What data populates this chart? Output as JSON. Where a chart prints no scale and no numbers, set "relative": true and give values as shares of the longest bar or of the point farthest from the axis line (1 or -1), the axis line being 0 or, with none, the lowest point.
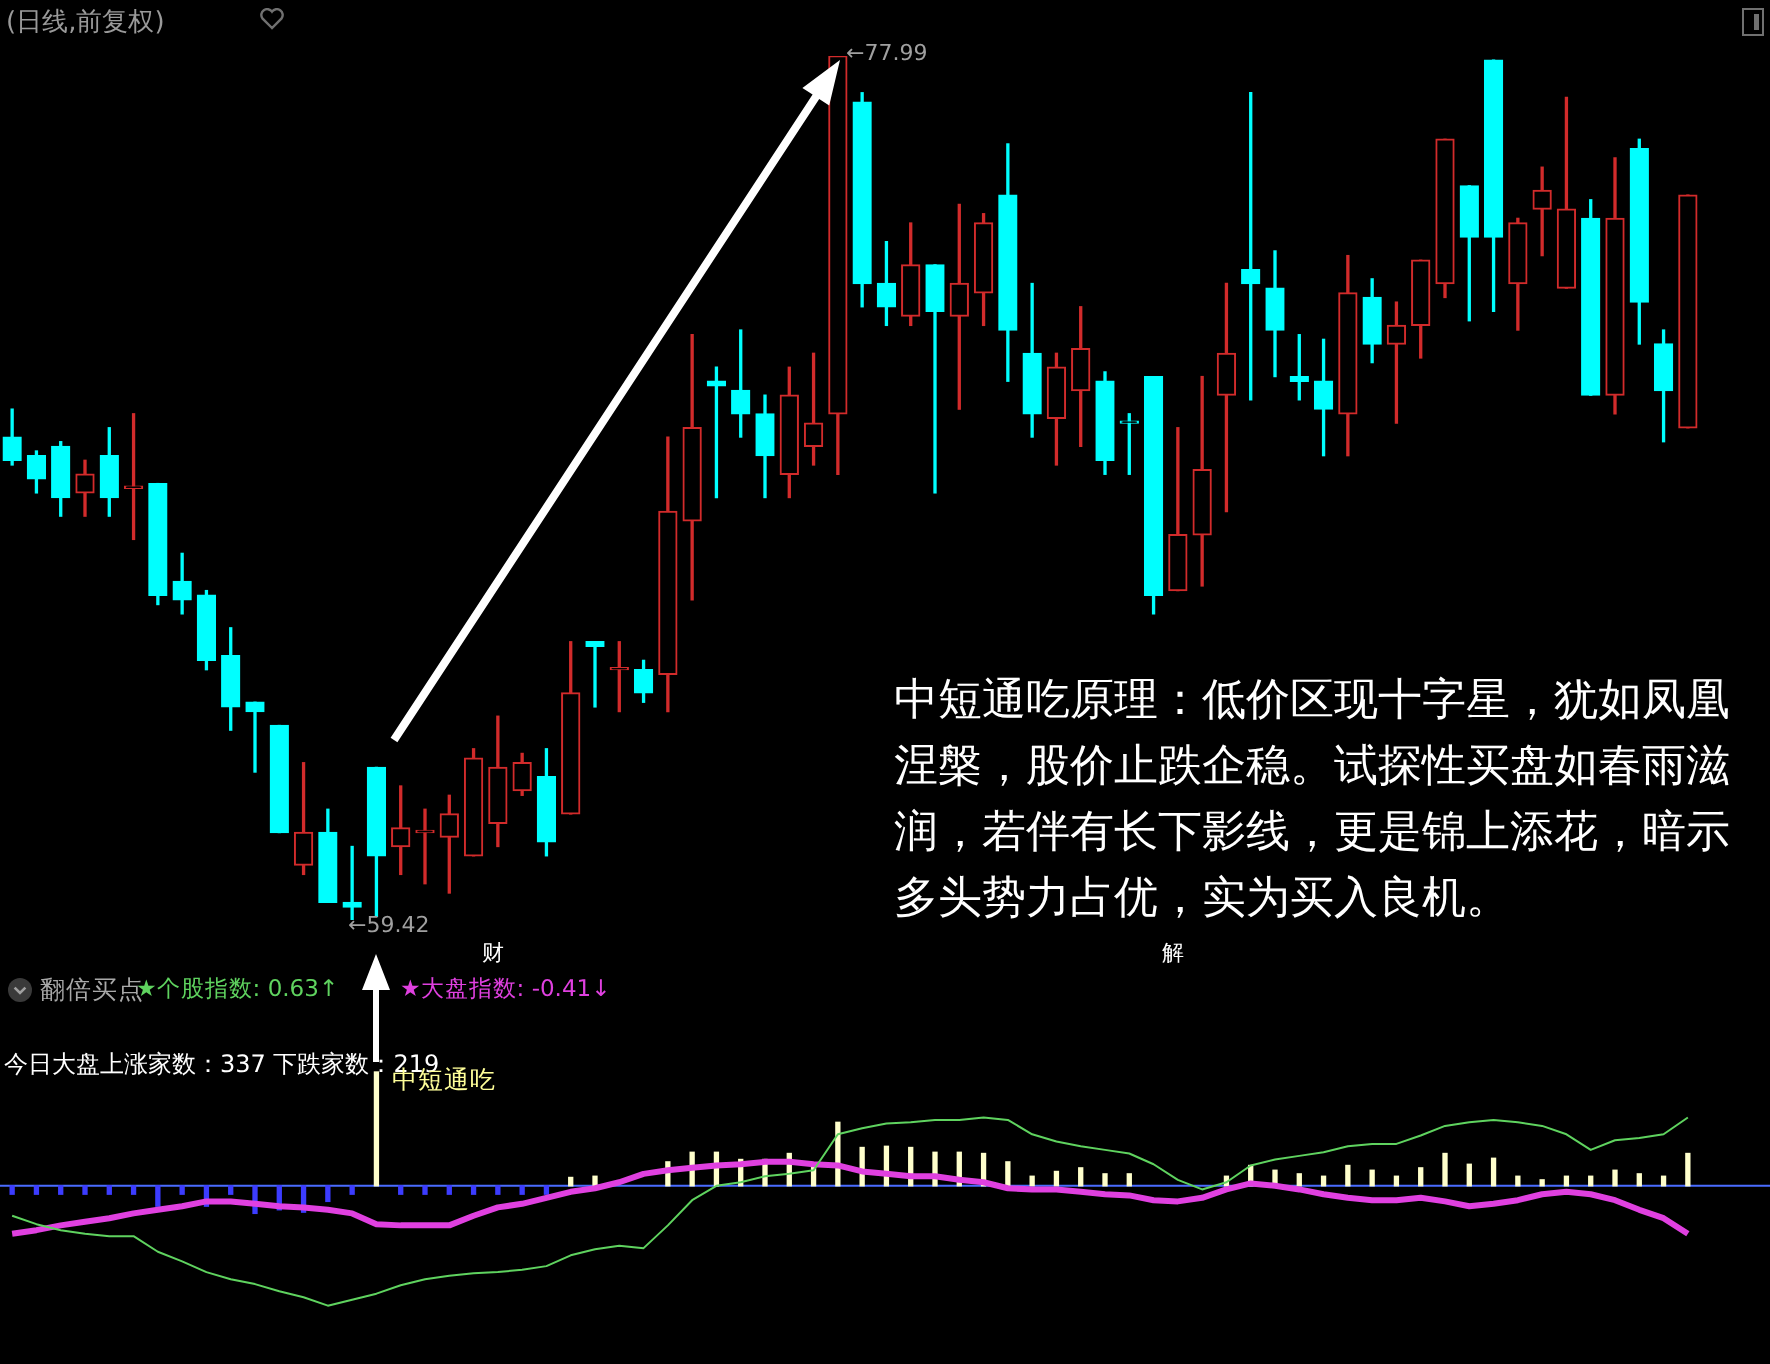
{
  "chart_data": [
    {
      "type": "candlestick",
      "title": "(日线,前复权)",
      "categories": [
        null,
        null,
        null,
        null,
        null,
        null,
        null,
        null,
        null,
        null,
        null,
        null,
        null,
        null,
        null,
        null,
        null,
        null,
        null,
        null,
        null,
        null,
        null,
        null,
        null,
        null,
        null,
        null,
        null,
        null,
        null,
        null,
        null,
        null,
        null,
        null,
        null,
        null,
        null,
        null,
        null,
        null,
        null,
        null,
        null,
        null,
        null,
        null,
        null,
        null,
        null,
        null,
        null,
        null,
        null,
        null,
        null,
        null,
        null,
        null,
        null,
        null,
        null,
        null,
        null,
        null,
        null,
        null,
        null,
        null
      ],
      "ohlc": [
        [
          69.8,
          70.4,
          69.2,
          69.3
        ],
        [
          69.4,
          69.5,
          68.6,
          68.9
        ],
        [
          69.6,
          69.7,
          68.1,
          68.5
        ],
        [
          68.6,
          69.3,
          68.1,
          69.0
        ],
        [
          69.4,
          70.0,
          68.1,
          68.5
        ],
        [
          68.7,
          70.3,
          67.6,
          68.7
        ],
        [
          68.8,
          68.8,
          66.2,
          66.4
        ],
        [
          66.7,
          67.3,
          66.0,
          66.3
        ],
        [
          66.4,
          66.5,
          64.8,
          65.0
        ],
        [
          65.1,
          65.7,
          63.5,
          64.0
        ],
        [
          64.1,
          64.1,
          62.6,
          63.9
        ],
        [
          63.6,
          63.6,
          61.3,
          61.3
        ],
        [
          60.6,
          62.8,
          60.4,
          61.3
        ],
        [
          61.3,
          61.8,
          59.8,
          59.8
        ],
        [
          59.8,
          61.0,
          59.42,
          59.7
        ],
        [
          62.7,
          62.7,
          59.5,
          60.8
        ],
        [
          61.0,
          62.3,
          60.4,
          61.4
        ],
        [
          61.3,
          61.8,
          60.2,
          61.3
        ],
        [
          61.2,
          62.1,
          60.0,
          61.7
        ],
        [
          60.8,
          63.1,
          60.8,
          62.9
        ],
        [
          61.5,
          63.8,
          61.0,
          62.7
        ],
        [
          62.2,
          63.0,
          62.1,
          62.8
        ],
        [
          62.5,
          63.1,
          60.8,
          61.1
        ],
        [
          61.7,
          65.4,
          61.7,
          64.3
        ],
        [
          65.4,
          65.4,
          64.0,
          65.3
        ],
        [
          64.8,
          65.4,
          63.9,
          64.8
        ],
        [
          64.8,
          65.0,
          64.1,
          64.3
        ],
        [
          64.7,
          69.8,
          63.9,
          68.2
        ],
        [
          68.0,
          72.0,
          66.3,
          70.0
        ],
        [
          71.0,
          71.3,
          68.5,
          70.9
        ],
        [
          70.8,
          72.1,
          69.8,
          70.3
        ],
        [
          70.3,
          70.7,
          68.5,
          69.4
        ],
        [
          69.0,
          71.3,
          68.5,
          70.7
        ],
        [
          69.6,
          71.6,
          69.2,
          70.1
        ],
        [
          70.3,
          77.99,
          69.0,
          77.99
        ],
        [
          77.0,
          77.2,
          72.6,
          73.1
        ],
        [
          73.1,
          74.0,
          72.2,
          72.6
        ],
        [
          72.4,
          74.4,
          72.2,
          73.5
        ],
        [
          73.5,
          73.5,
          68.6,
          72.5
        ],
        [
          72.4,
          74.8,
          70.4,
          73.1
        ],
        [
          72.9,
          74.6,
          72.2,
          74.4
        ],
        [
          75.0,
          76.1,
          71.0,
          72.1
        ],
        [
          71.6,
          73.1,
          69.8,
          70.3
        ],
        [
          70.2,
          71.6,
          69.2,
          71.3
        ],
        [
          70.8,
          72.6,
          69.6,
          71.7
        ],
        [
          71.0,
          71.2,
          69.0,
          69.3
        ],
        [
          70.1,
          70.3,
          69.0,
          70.1
        ],
        [
          71.1,
          71.1,
          66.0,
          66.4
        ],
        [
          66.5,
          70.0,
          66.5,
          67.7
        ],
        [
          67.7,
          71.1,
          66.6,
          69.1
        ],
        [
          70.7,
          73.1,
          68.2,
          71.6
        ],
        [
          73.4,
          77.2,
          70.6,
          73.1
        ],
        [
          73.0,
          73.8,
          71.1,
          72.1
        ],
        [
          71.1,
          72.0,
          70.6,
          71.0
        ],
        [
          71.0,
          71.9,
          69.4,
          70.4
        ],
        [
          70.3,
          73.7,
          69.4,
          72.9
        ],
        [
          72.8,
          73.2,
          71.4,
          71.8
        ],
        [
          71.8,
          72.7,
          70.1,
          72.2
        ],
        [
          72.2,
          73.6,
          71.5,
          73.6
        ],
        [
          73.1,
          76.2,
          72.8,
          76.2
        ],
        [
          75.2,
          75.2,
          72.3,
          74.1
        ],
        [
          77.9,
          77.9,
          72.5,
          74.1
        ],
        [
          73.1,
          74.5,
          72.1,
          74.4
        ],
        [
          74.7,
          75.6,
          73.7,
          75.1
        ],
        [
          73.0,
          77.1,
          73.0,
          74.7
        ],
        [
          74.5,
          74.9,
          70.7,
          70.7
        ],
        [
          70.7,
          75.8,
          70.3,
          74.5
        ],
        [
          76.0,
          76.2,
          71.8,
          72.7
        ],
        [
          71.8,
          72.1,
          69.7,
          70.8
        ],
        [
          70.0,
          75.0,
          70.0,
          75.0
        ]
      ],
      "colors": [
        "#00ffff",
        "#00ffff",
        "#00ffff",
        "#d22b2b",
        "#00ffff",
        "#d22b2b",
        "#00ffff",
        "#00ffff",
        "#00ffff",
        "#00ffff",
        "#00ffff",
        "#00ffff",
        "#d22b2b",
        "#00ffff",
        "#00ffff",
        "#00ffff",
        "#d22b2b",
        "#d22b2b",
        "#d22b2b",
        "#d22b2b",
        "#d22b2b",
        "#d22b2b",
        "#00ffff",
        "#d22b2b",
        "#00ffff",
        "#d22b2b",
        "#00ffff",
        "#d22b2b",
        "#d22b2b",
        "#00ffff",
        "#00ffff",
        "#00ffff",
        "#d22b2b",
        "#d22b2b",
        "#d22b2b",
        "#00ffff",
        "#00ffff",
        "#d22b2b",
        "#00ffff",
        "#d22b2b",
        "#d22b2b",
        "#00ffff",
        "#00ffff",
        "#d22b2b",
        "#d22b2b",
        "#00ffff",
        "#00ffff",
        "#00ffff",
        "#d22b2b",
        "#d22b2b",
        "#d22b2b",
        "#00ffff",
        "#00ffff",
        "#00ffff",
        "#00ffff",
        "#d22b2b",
        "#00ffff",
        "#d22b2b",
        "#d22b2b",
        "#d22b2b",
        "#00ffff",
        "#00ffff",
        "#d22b2b",
        "#d22b2b",
        "#d22b2b",
        "#00ffff",
        "#d22b2b",
        "#00ffff",
        "#00ffff",
        "#d22b2b"
      ],
      "annotations": [
        "←77.99",
        "←59.42",
        "中短通吃原理：低价区现十字星，犹如凤凰涅槃，股价止跌企稳。试探性买盘如春雨滋润，若伴有长下影线，更是锦上添花，暗示多头势力占优，实为买入良机。",
        "财",
        "解"
      ]
    },
    {
      "type": "bar",
      "relative": true,
      "ref_lines": [
        {
          "axis": "y",
          "value": 0,
          "color": "#4a6cff"
        }
      ],
      "categories": [
        null,
        null,
        null,
        null,
        null,
        null,
        null,
        null,
        null,
        null,
        null,
        null,
        null,
        null,
        null,
        null,
        null,
        null,
        null,
        null,
        null,
        null,
        null,
        null,
        null,
        null,
        null,
        null,
        null,
        null,
        null,
        null,
        null,
        null,
        null,
        null,
        null,
        null,
        null,
        null,
        null,
        null,
        null,
        null,
        null,
        null,
        null,
        null,
        null,
        null,
        null,
        null,
        null,
        null,
        null,
        null,
        null,
        null,
        null,
        null,
        null,
        null,
        null,
        null,
        null,
        null,
        null,
        null,
        null,
        null
      ],
      "series": [
        {
          "type": "bar",
          "color": "#ffffcc",
          "values": [
            null,
            null,
            null,
            null,
            null,
            null,
            null,
            null,
            null,
            null,
            null,
            null,
            null,
            null,
            null,
            0.95,
            null,
            null,
            null,
            null,
            null,
            null,
            null,
            0.07,
            0.08,
            null,
            null,
            0.2,
            0.28,
            0.28,
            0.22,
            0.22,
            0.27,
            0.18,
            0.53,
            0.32,
            0.33,
            0.32,
            0.28,
            0.28,
            0.27,
            0.2,
            0.08,
            0.12,
            0.15,
            0.1,
            0.1,
            null,
            null,
            null,
            0.08,
            0.17,
            0.13,
            0.1,
            0.08,
            0.17,
            0.13,
            0.08,
            0.15,
            0.27,
            0.18,
            0.23,
            0.08,
            0.05,
            0.08,
            0.08,
            0.13,
            0.1,
            0.08,
            0.27
          ]
        },
        {
          "type": "bar",
          "color": "#3c3cff",
          "values": [
            -0.07,
            -0.07,
            -0.07,
            -0.07,
            -0.07,
            -0.07,
            -0.17,
            -0.07,
            -0.17,
            -0.07,
            -0.23,
            -0.2,
            -0.22,
            -0.13,
            -0.07,
            null,
            -0.07,
            -0.07,
            -0.07,
            -0.07,
            -0.07,
            -0.07,
            -0.07,
            null,
            null,
            null,
            null,
            null,
            null,
            null,
            null,
            null,
            null,
            null,
            null,
            null,
            null,
            null,
            null,
            null,
            null,
            null,
            null,
            null,
            null,
            null,
            null,
            null,
            null,
            null,
            null,
            null,
            null,
            null,
            null,
            null,
            null,
            null,
            null,
            null,
            null,
            null,
            null,
            null,
            null,
            null,
            null,
            null,
            null,
            null
          ]
        },
        {
          "type": "line",
          "color": "#5fd35f",
          "values": [
            -0.25,
            -0.32,
            -0.37,
            -0.4,
            -0.42,
            -0.42,
            -0.55,
            -0.63,
            -0.72,
            -0.78,
            -0.82,
            -0.88,
            -0.93,
            -1,
            -0.95,
            -0.9,
            -0.83,
            -0.78,
            -0.75,
            -0.73,
            -0.72,
            -0.7,
            -0.67,
            -0.58,
            -0.53,
            -0.5,
            -0.52,
            -0.33,
            -0.12,
            0,
            0.03,
            0.08,
            0.1,
            0.13,
            0.43,
            0.48,
            0.52,
            0.53,
            0.55,
            0.55,
            0.57,
            0.55,
            0.43,
            0.37,
            0.33,
            0.3,
            0.27,
            0.18,
            0.05,
            -0.03,
            0.03,
            0.17,
            0.22,
            0.25,
            0.28,
            0.33,
            0.35,
            0.35,
            0.42,
            0.5,
            0.53,
            0.55,
            0.53,
            0.5,
            0.43,
            0.3,
            0.38,
            0.4,
            0.43,
            0.57
          ]
        },
        {
          "type": "line",
          "color": "#e040e0",
          "values": [
            -0.4,
            -0.37,
            -0.33,
            -0.3,
            -0.27,
            -0.23,
            -0.2,
            -0.17,
            -0.13,
            -0.13,
            -0.15,
            -0.17,
            -0.18,
            -0.2,
            -0.23,
            -0.32,
            -0.33,
            -0.33,
            -0.33,
            -0.25,
            -0.18,
            -0.15,
            -0.1,
            -0.05,
            -0.02,
            0.03,
            0.1,
            0.13,
            0.15,
            0.17,
            0.18,
            0.2,
            0.2,
            0.18,
            0.17,
            0.12,
            0.1,
            0.08,
            0.08,
            0.05,
            0.03,
            -0.02,
            -0.03,
            -0.03,
            -0.05,
            -0.07,
            -0.08,
            -0.12,
            -0.13,
            -0.1,
            -0.03,
            0.02,
            0,
            -0.03,
            -0.07,
            -0.1,
            -0.12,
            -0.12,
            -0.1,
            -0.13,
            -0.17,
            -0.15,
            -0.12,
            -0.07,
            -0.05,
            -0.07,
            -0.12,
            -0.2,
            -0.27,
            -0.4
          ]
        }
      ],
      "annotations": [
        "翻倍买点",
        "★个股指数: 0.63↑",
        "★大盘指数: -0.41↓",
        "今日大盘上涨家数：337 下跌家数：219",
        "中短通吃"
      ]
    }
  ]
}
